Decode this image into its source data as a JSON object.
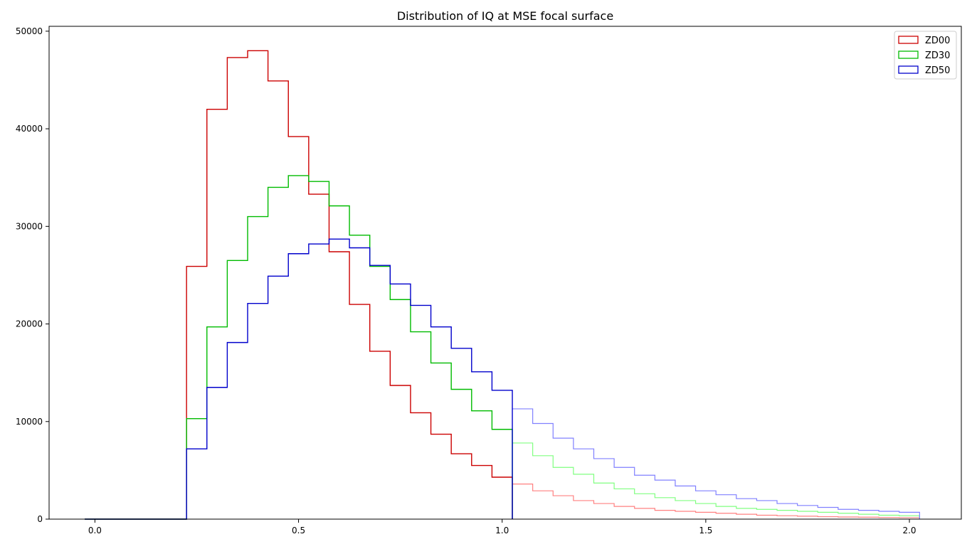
{
  "chart_data": {
    "type": "histogram",
    "title": "Distribution of IQ at MSE focal surface",
    "xlabel": "",
    "ylabel": "",
    "xlim": [
      -0.1125,
      2.1275
    ],
    "ylim": [
      0,
      50500
    ],
    "xticks": [
      0.0,
      0.5,
      1.0,
      1.5,
      2.0
    ],
    "xtick_labels": [
      "0.0",
      "0.5",
      "1.0",
      "1.5",
      "2.0"
    ],
    "yticks": [
      0,
      10000,
      20000,
      30000,
      40000,
      50000
    ],
    "ytick_labels": [
      "0",
      "10000",
      "20000",
      "30000",
      "40000",
      "50000"
    ],
    "grid": false,
    "legend_position": "top-right",
    "bin_edges": [
      -0.025,
      0.025,
      0.075,
      0.125,
      0.175,
      0.225,
      0.275,
      0.325,
      0.375,
      0.425,
      0.475,
      0.525,
      0.575,
      0.625,
      0.675,
      0.725,
      0.775,
      0.825,
      0.875,
      0.925,
      0.975,
      1.025,
      1.075,
      1.125,
      1.175,
      1.225,
      1.275,
      1.325,
      1.375,
      1.425,
      1.475,
      1.525,
      1.575,
      1.625,
      1.675,
      1.725,
      1.775,
      1.825,
      1.875,
      1.925,
      1.975,
      2.025
    ],
    "series": [
      {
        "name": "ZD00",
        "color": "#cc0000",
        "faded_color": "#ff8080",
        "values": [
          0,
          0,
          0,
          0,
          0,
          25900,
          42000,
          47300,
          48000,
          44900,
          39200,
          33300,
          27400,
          22000,
          17200,
          13700,
          10900,
          8700,
          6700,
          5500,
          4300,
          3600,
          2900,
          2400,
          1900,
          1600,
          1300,
          1100,
          900,
          800,
          700,
          600,
          500,
          400,
          350,
          300,
          250,
          220,
          200,
          170,
          150
        ]
      },
      {
        "name": "ZD30",
        "color": "#00bb00",
        "faded_color": "#80ff80",
        "values": [
          0,
          0,
          0,
          0,
          0,
          10300,
          19700,
          26500,
          31000,
          34000,
          35200,
          34600,
          32100,
          29100,
          25900,
          22500,
          19200,
          16000,
          13300,
          11100,
          9200,
          7800,
          6500,
          5300,
          4600,
          3700,
          3100,
          2600,
          2200,
          1900,
          1600,
          1300,
          1100,
          1000,
          900,
          800,
          700,
          600,
          500,
          400,
          350
        ]
      },
      {
        "name": "ZD50",
        "color": "#0000cc",
        "faded_color": "#8080ff",
        "values": [
          0,
          0,
          0,
          0,
          0,
          7200,
          13500,
          18100,
          22100,
          24900,
          27200,
          28200,
          28700,
          27800,
          26000,
          24100,
          21900,
          19700,
          17500,
          15100,
          13200,
          11300,
          9800,
          8300,
          7200,
          6200,
          5300,
          4500,
          4000,
          3400,
          2900,
          2500,
          2100,
          1900,
          1600,
          1400,
          1200,
          1000,
          900,
          800,
          700
        ]
      }
    ]
  }
}
